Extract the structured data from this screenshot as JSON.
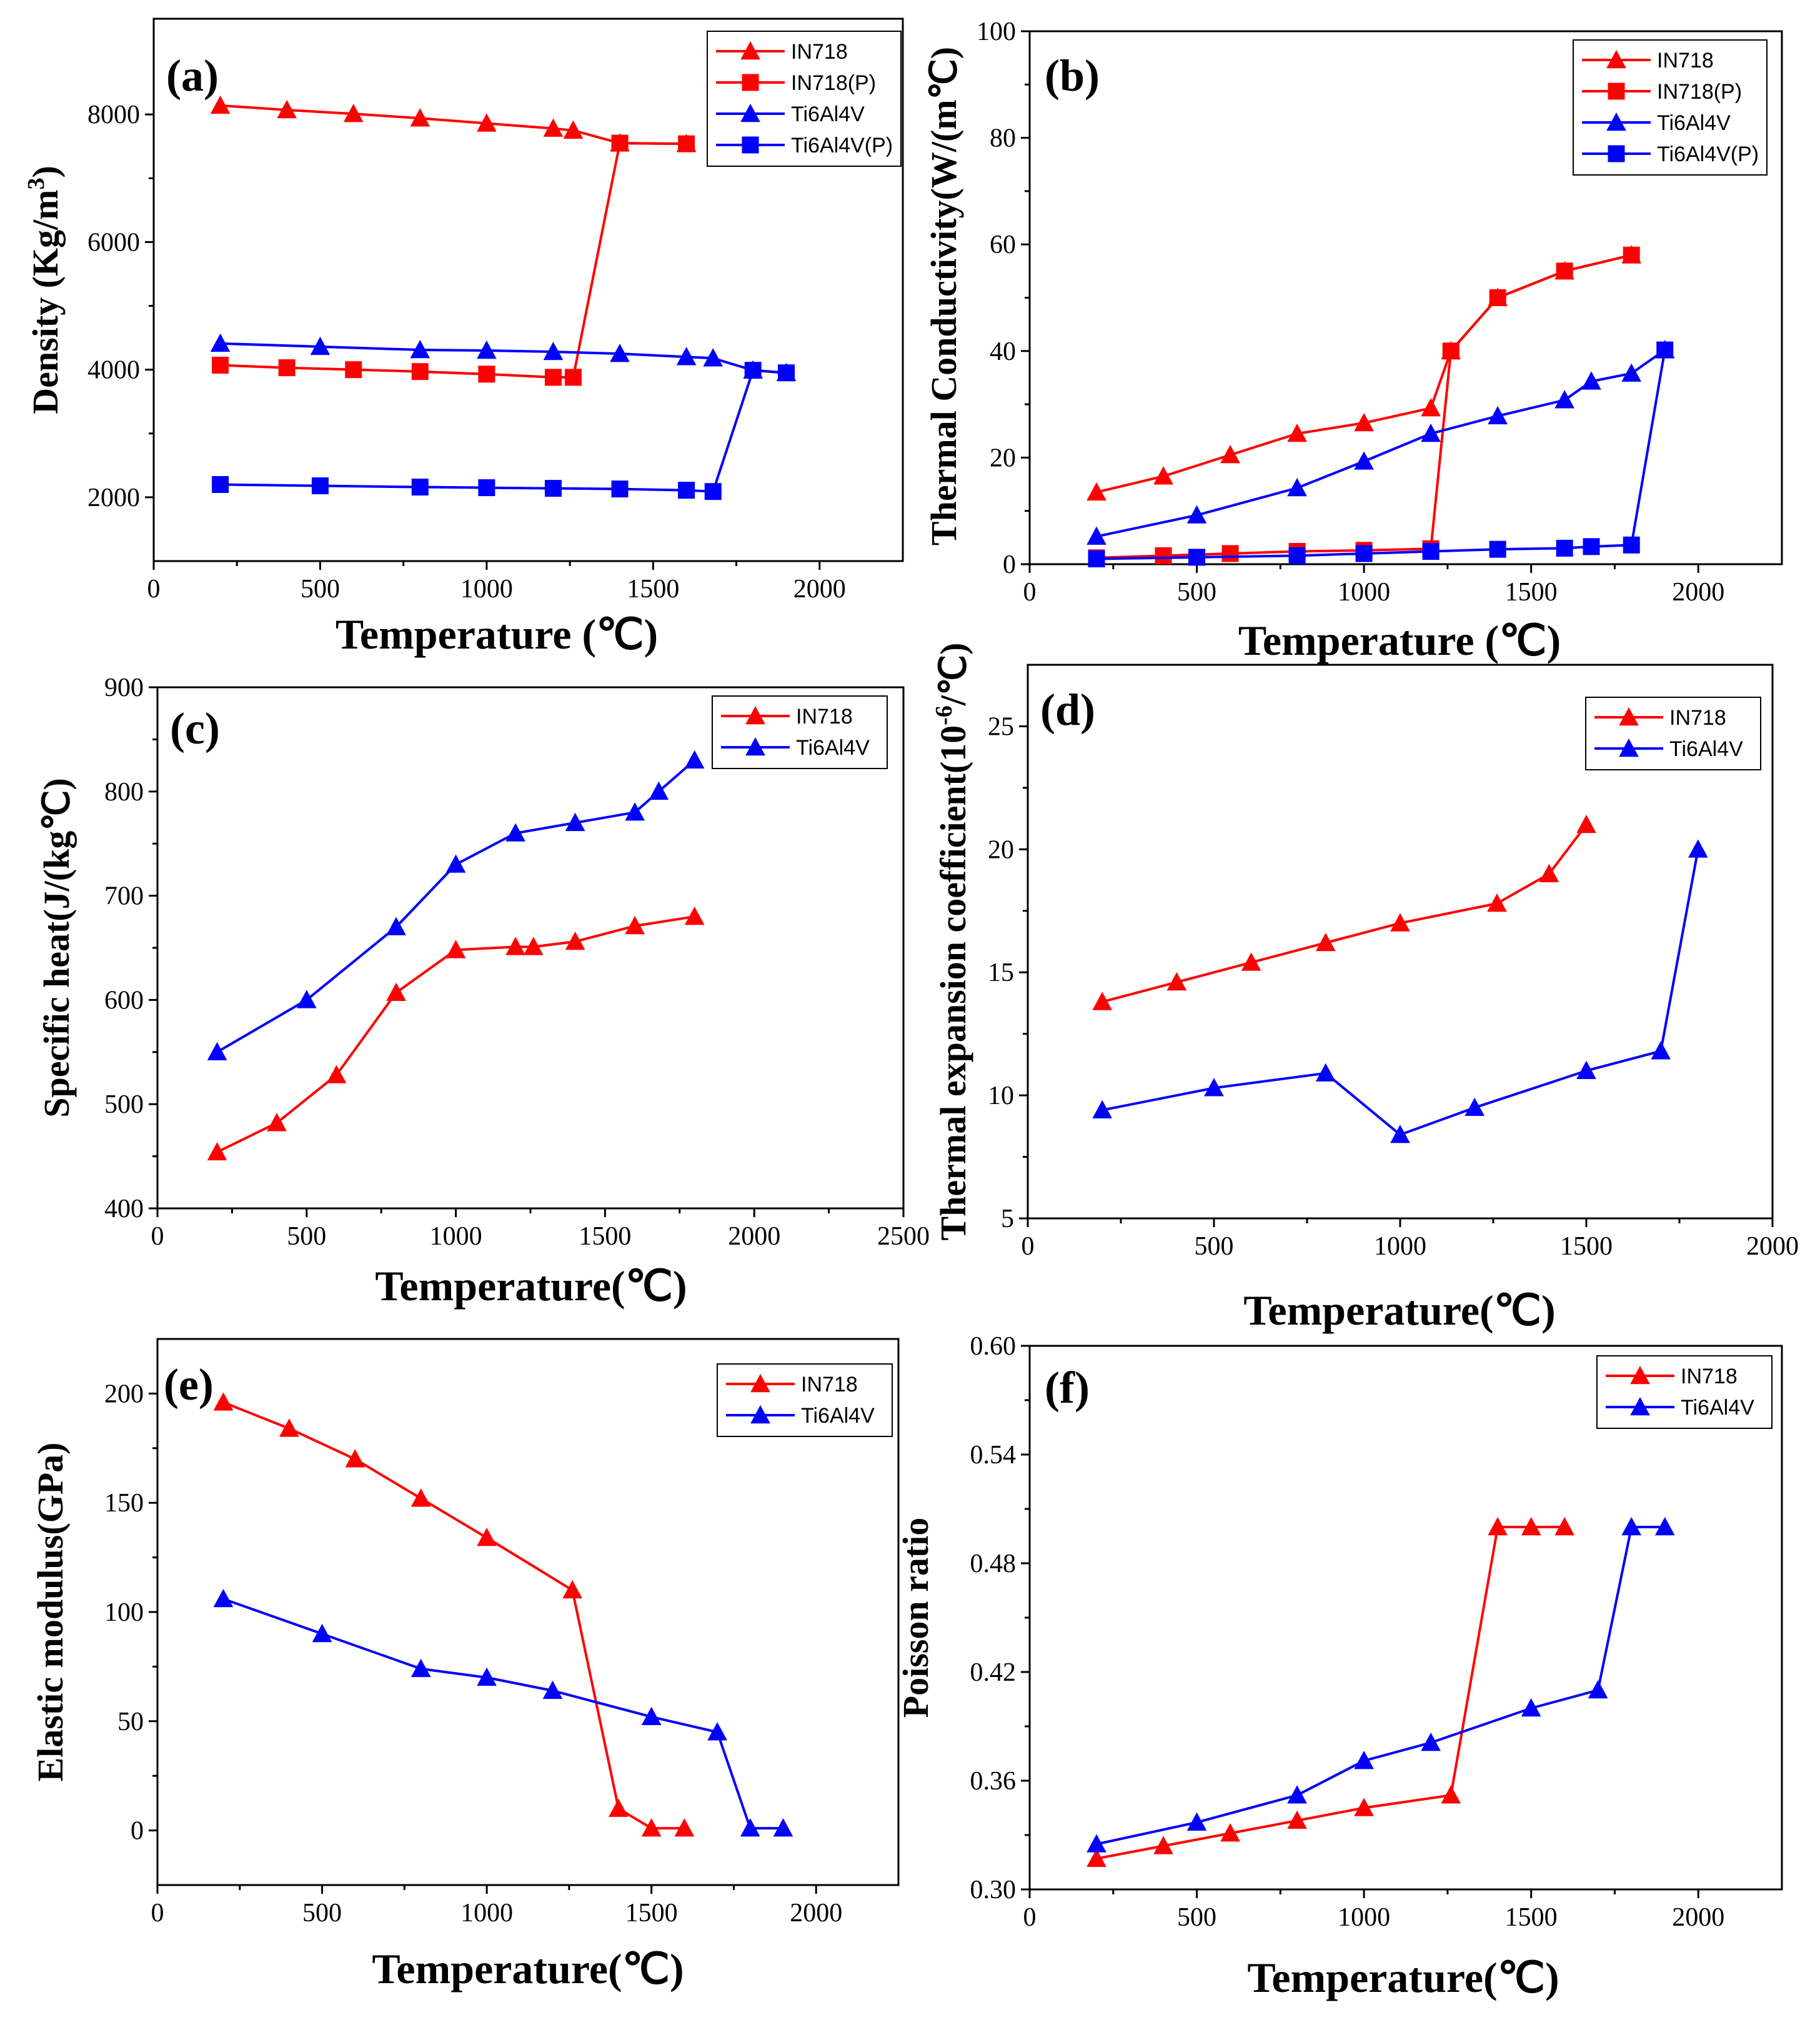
{
  "colors": {
    "red": "#ff0000",
    "blue": "#0000ff",
    "axis": "#000000"
  },
  "chart_data": [
    {
      "id": "a",
      "type": "line",
      "label": "(a)",
      "xlabel": "Temperature (℃)",
      "ylabel": "Density (Kg/m",
      "ylabel_sup": "3",
      "ylabel_end": ")",
      "xlim": [
        0,
        2250
      ],
      "ylim": [
        1000,
        9500
      ],
      "xticks": [
        0,
        500,
        1000,
        1500,
        2000
      ],
      "yticks": [
        2000,
        4000,
        6000,
        8000
      ],
      "series": [
        {
          "name": "IN718",
          "color": "red",
          "marker": "triangle",
          "x": [
            200,
            400,
            600,
            800,
            1000,
            1200,
            1260,
            1400,
            1600
          ],
          "y": [
            8140,
            8070,
            8010,
            7940,
            7860,
            7780,
            7750,
            7550,
            7540
          ]
        },
        {
          "name": "IN718(P)",
          "color": "red",
          "marker": "square",
          "x": [
            200,
            400,
            600,
            800,
            1000,
            1200,
            1260,
            1400,
            1600
          ],
          "y": [
            4070,
            4030,
            4000,
            3970,
            3930,
            3880,
            3880,
            7550,
            7540
          ]
        },
        {
          "name": "Ti6Al4V",
          "color": "blue",
          "marker": "triangle",
          "x": [
            200,
            500,
            800,
            1000,
            1200,
            1400,
            1600,
            1680,
            1800,
            1900
          ],
          "y": [
            4410,
            4360,
            4310,
            4300,
            4280,
            4250,
            4200,
            4180,
            3990,
            3950
          ]
        },
        {
          "name": "Ti6Al4V(P)",
          "color": "blue",
          "marker": "square",
          "x": [
            200,
            500,
            800,
            1000,
            1200,
            1400,
            1600,
            1680,
            1800,
            1900
          ],
          "y": [
            2200,
            2180,
            2160,
            2150,
            2140,
            2130,
            2110,
            2090,
            3990,
            3950
          ]
        }
      ]
    },
    {
      "id": "b",
      "type": "line",
      "label": "(b)",
      "xlabel": "Temperature (℃)",
      "ylabel": "Thermal Conductivity(W/(m℃)",
      "xlim": [
        0,
        2250
      ],
      "ylim": [
        0,
        100
      ],
      "xticks": [
        0,
        500,
        1000,
        1500,
        2000
      ],
      "yticks": [
        0,
        20,
        40,
        60,
        80,
        100
      ],
      "series": [
        {
          "name": "IN718",
          "color": "red",
          "marker": "triangle",
          "x": [
            200,
            400,
            600,
            800,
            1000,
            1200,
            1260,
            1400,
            1600,
            1800
          ],
          "y": [
            13.5,
            16.5,
            20.5,
            24.5,
            26.5,
            29.3,
            40,
            50,
            55,
            58
          ]
        },
        {
          "name": "IN718(P)",
          "color": "red",
          "marker": "square",
          "x": [
            200,
            400,
            600,
            800,
            1000,
            1200,
            1260,
            1400,
            1600,
            1800
          ],
          "y": [
            1.2,
            1.6,
            2.0,
            2.4,
            2.6,
            2.9,
            40,
            50,
            55,
            58
          ]
        },
        {
          "name": "Ti6Al4V",
          "color": "blue",
          "marker": "triangle",
          "x": [
            200,
            500,
            800,
            1000,
            1200,
            1400,
            1600,
            1680,
            1800,
            1900
          ],
          "y": [
            5.2,
            9.2,
            14.3,
            19.3,
            24.5,
            27.8,
            30.8,
            34.3,
            35.8,
            40.2
          ]
        },
        {
          "name": "Ti6Al4V(P)",
          "color": "blue",
          "marker": "square",
          "x": [
            200,
            500,
            800,
            1000,
            1200,
            1400,
            1600,
            1680,
            1800,
            1900
          ],
          "y": [
            1.0,
            1.3,
            1.6,
            2.0,
            2.4,
            2.8,
            3.0,
            3.3,
            3.6,
            40.2
          ]
        }
      ]
    },
    {
      "id": "c",
      "type": "line",
      "label": "(c)",
      "xlabel": "Temperature(℃)",
      "ylabel": "Specific heat(J/(kg℃)",
      "xlim": [
        0,
        2500
      ],
      "ylim": [
        400,
        900
      ],
      "xticks": [
        0,
        500,
        1000,
        1500,
        2000,
        2500
      ],
      "yticks": [
        400,
        500,
        600,
        700,
        800,
        900
      ],
      "series": [
        {
          "name": "IN718",
          "color": "red",
          "marker": "triangle",
          "x": [
            200,
            400,
            600,
            800,
            1000,
            1200,
            1260,
            1400,
            1600,
            1800
          ],
          "y": [
            454,
            482,
            528,
            607,
            648,
            651,
            651,
            656,
            671,
            680
          ]
        },
        {
          "name": "Ti6Al4V",
          "color": "blue",
          "marker": "triangle",
          "x": [
            200,
            500,
            800,
            1000,
            1200,
            1400,
            1600,
            1680,
            1800
          ],
          "y": [
            550,
            600,
            670,
            730,
            760,
            770,
            780,
            800,
            830
          ]
        }
      ]
    },
    {
      "id": "d",
      "type": "line",
      "label": "(d)",
      "xlabel": "Temperature(℃)",
      "ylabel": "Thermal expansion coefficient(10",
      "ylabel_sup": "-6",
      "ylabel_end": "/℃)",
      "xlim": [
        0,
        2000
      ],
      "ylim": [
        5,
        27.5
      ],
      "xticks": [
        0,
        500,
        1000,
        1500,
        2000
      ],
      "yticks": [
        5,
        10,
        15,
        20,
        25
      ],
      "series": [
        {
          "name": "IN718",
          "color": "red",
          "marker": "triangle",
          "x": [
            200,
            400,
            600,
            800,
            1000,
            1260,
            1400,
            1500
          ],
          "y": [
            13.8,
            14.6,
            15.4,
            16.2,
            17.0,
            17.8,
            19.0,
            21.0
          ]
        },
        {
          "name": "Ti6Al4V",
          "color": "blue",
          "marker": "triangle",
          "x": [
            200,
            500,
            800,
            1000,
            1200,
            1500,
            1700,
            1800
          ],
          "y": [
            9.4,
            10.3,
            10.9,
            8.4,
            9.5,
            11.0,
            11.8,
            20.0
          ]
        }
      ]
    },
    {
      "id": "e",
      "type": "line",
      "label": "(e)",
      "xlabel": "Temperature(℃)",
      "ylabel": "Elastic modulus(GPa)",
      "xlim": [
        0,
        2250
      ],
      "ylim": [
        -25,
        225
      ],
      "xticks": [
        0,
        500,
        1000,
        1500,
        2000
      ],
      "yticks": [
        0,
        50,
        100,
        150,
        200
      ],
      "series": [
        {
          "name": "IN718",
          "color": "red",
          "marker": "triangle",
          "x": [
            200,
            400,
            600,
            800,
            1000,
            1260,
            1400,
            1500,
            1600
          ],
          "y": [
            196,
            184,
            170,
            152,
            134,
            110,
            10,
            1,
            1
          ]
        },
        {
          "name": "Ti6Al4V",
          "color": "blue",
          "marker": "triangle",
          "x": [
            200,
            500,
            800,
            1000,
            1200,
            1500,
            1700,
            1800,
            1900
          ],
          "y": [
            106,
            90,
            74,
            70,
            64,
            52,
            45,
            1,
            1
          ]
        }
      ]
    },
    {
      "id": "f",
      "type": "line",
      "label": "(f)",
      "xlabel": "Temperature(℃)",
      "ylabel": "Poisson ratio",
      "xlim": [
        0,
        2250
      ],
      "ylim": [
        0.3,
        0.6
      ],
      "xticks": [
        0,
        500,
        1000,
        1500,
        2000
      ],
      "yticks": [
        0.3,
        0.36,
        0.42,
        0.48,
        0.54,
        0.6
      ],
      "ytick_decimals": 2,
      "series": [
        {
          "name": "IN718",
          "color": "red",
          "marker": "triangle",
          "x": [
            200,
            400,
            600,
            800,
            1000,
            1260,
            1400,
            1500,
            1600
          ],
          "y": [
            0.317,
            0.324,
            0.331,
            0.338,
            0.345,
            0.352,
            0.5,
            0.5,
            0.5
          ]
        },
        {
          "name": "Ti6Al4V",
          "color": "blue",
          "marker": "triangle",
          "x": [
            200,
            500,
            800,
            1000,
            1200,
            1500,
            1700,
            1800,
            1900
          ],
          "y": [
            0.325,
            0.337,
            0.352,
            0.371,
            0.381,
            0.4,
            0.41,
            0.5,
            0.5
          ]
        }
      ]
    }
  ]
}
